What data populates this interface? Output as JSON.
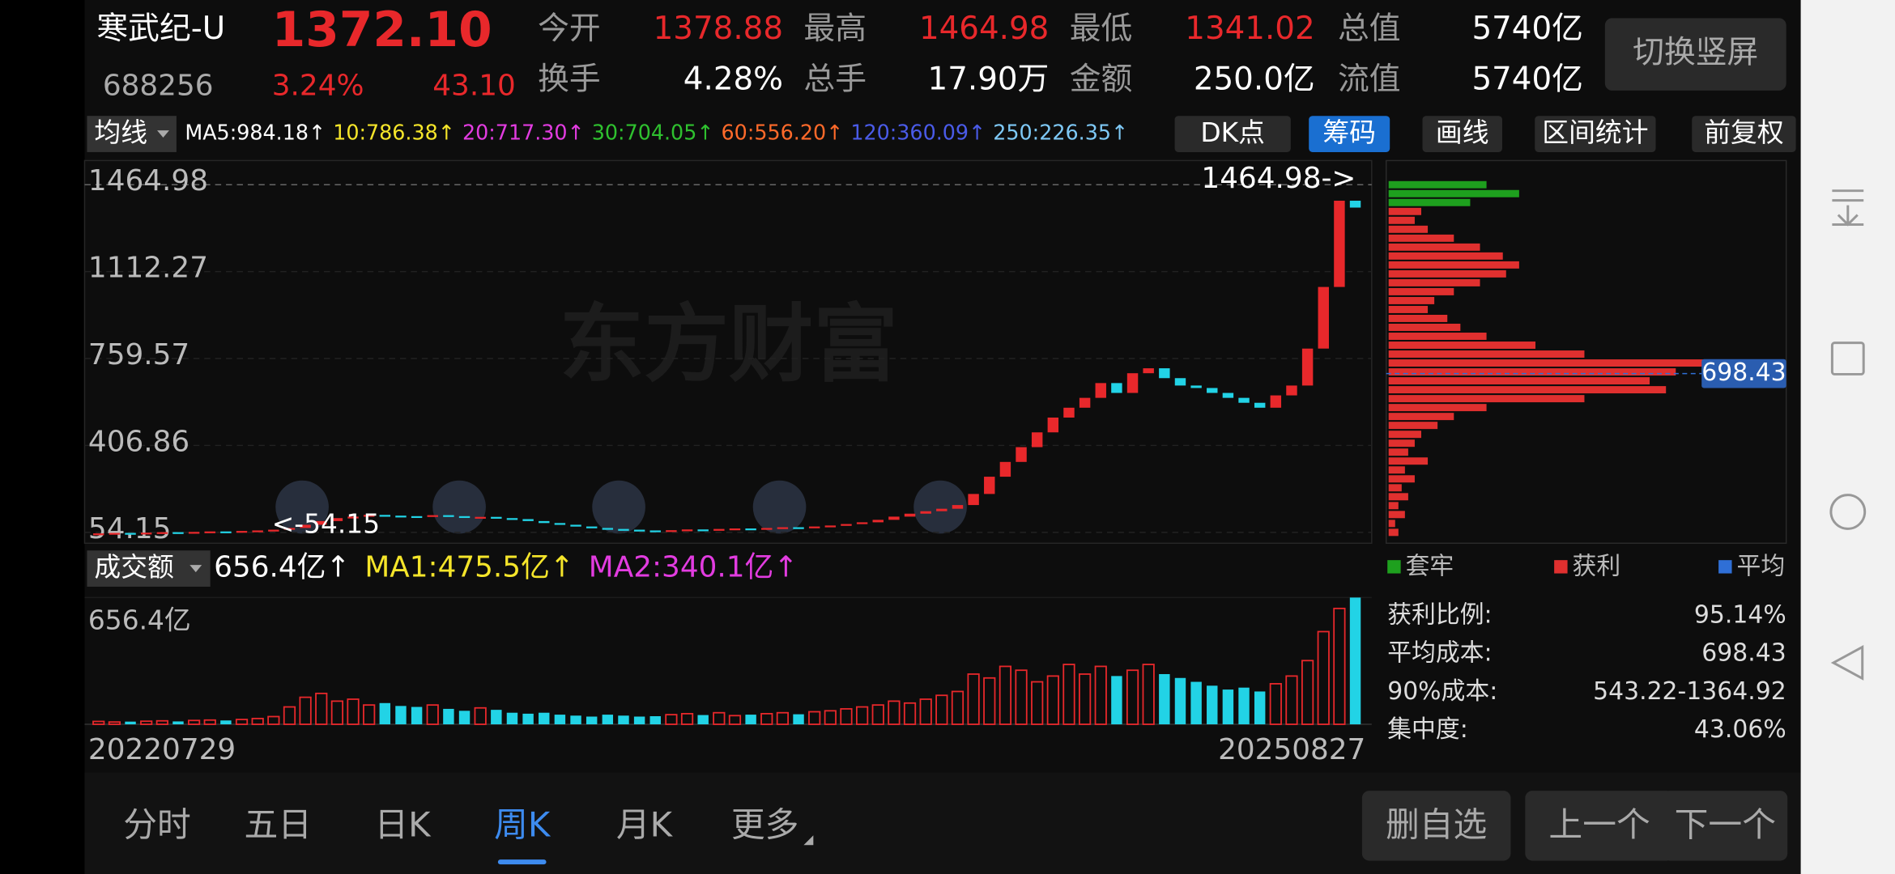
{
  "header": {
    "name": "寒武纪-U",
    "price": "1372.10",
    "code": "688256",
    "change_pct": "3.24%",
    "change": "43.10",
    "stats": [
      {
        "label": "今开",
        "value": "1378.88",
        "color": "#e8282b"
      },
      {
        "label": "最高",
        "value": "1464.98",
        "color": "#e8282b"
      },
      {
        "label": "最低",
        "value": "1341.02",
        "color": "#e8282b"
      },
      {
        "label": "总值",
        "value": "5740亿",
        "color": "#ffffff"
      },
      {
        "label": "换手",
        "value": "4.28%",
        "color": "#ffffff"
      },
      {
        "label": "总手",
        "value": "17.90万",
        "color": "#ffffff"
      },
      {
        "label": "金额",
        "value": "250.0亿",
        "color": "#ffffff"
      },
      {
        "label": "流值",
        "value": "5740亿",
        "color": "#ffffff"
      }
    ],
    "switch_button": "切换竖屏"
  },
  "toolbar": {
    "ma_selector": "均线",
    "ma_values": [
      {
        "text": "MA5:984.18↑",
        "color": "#ffffff"
      },
      {
        "text": "10:786.38↑",
        "color": "#f5e52a"
      },
      {
        "text": "20:717.30↑",
        "color": "#e23ce0"
      },
      {
        "text": "30:704.05↑",
        "color": "#2fc12f"
      },
      {
        "text": "60:556.20↑",
        "color": "#ff6a2a"
      },
      {
        "text": "120:360.09↑",
        "color": "#4a5be8"
      },
      {
        "text": "250:226.35↑",
        "color": "#7ec8f5"
      }
    ],
    "buttons": [
      "DK点",
      "筹码",
      "画线",
      "区间统计",
      "前复权"
    ],
    "active_button": 1
  },
  "chart_data": [
    {
      "type": "candlestick",
      "watermark": "东方财富",
      "annotations": [
        "1464.98->",
        "<-54.15"
      ],
      "ylim": [
        54.15,
        1464.98
      ],
      "yticks": [
        54.15,
        406.86,
        759.57,
        1112.27,
        1464.98
      ],
      "grid": true,
      "up_color": "#e8282b",
      "down_color": "#22d3e6",
      "categories": [
        "20220729",
        null,
        null,
        null,
        null,
        null,
        null,
        null,
        null,
        null,
        null,
        null,
        null,
        null,
        null,
        null,
        null,
        null,
        null,
        null,
        null,
        null,
        null,
        null,
        null,
        null,
        null,
        null,
        null,
        null,
        null,
        null,
        null,
        null,
        null,
        null,
        null,
        null,
        null,
        null,
        null,
        null,
        null,
        null,
        null,
        null,
        null,
        null,
        null,
        null,
        null,
        null,
        null,
        null,
        null,
        null,
        null,
        null,
        null,
        null,
        null,
        null,
        null,
        null,
        null,
        null,
        null,
        null,
        null,
        null,
        null,
        null,
        null,
        null,
        null,
        null,
        null,
        null,
        null,
        "20250827"
      ],
      "values": [
        50,
        52,
        51,
        53,
        55,
        54,
        56,
        58,
        57,
        60,
        62,
        65,
        72,
        85,
        100,
        112,
        118,
        125,
        122,
        120,
        118,
        124,
        120,
        115,
        117,
        112,
        108,
        100,
        92,
        85,
        78,
        72,
        68,
        65,
        62,
        60,
        63,
        66,
        64,
        68,
        70,
        67,
        72,
        75,
        73,
        78,
        82,
        88,
        95,
        105,
        118,
        130,
        140,
        150,
        165,
        210,
        280,
        340,
        400,
        460,
        520,
        560,
        600,
        660,
        620,
        700,
        720,
        680,
        650,
        640,
        620,
        600,
        580,
        560,
        610,
        650,
        800,
        1050,
        1400,
        1372.1
      ]
    },
    {
      "type": "bar",
      "title": "成交额",
      "legend": [
        {
          "name": "656.4亿↑",
          "color": "#ffffff"
        },
        {
          "name": "MA1:475.5亿↑",
          "color": "#f5e52a"
        },
        {
          "name": "MA2:340.1亿↑",
          "color": "#e23ce0"
        }
      ],
      "ylim": [
        0,
        656.4
      ],
      "yticks": [
        {
          "value": 656.4,
          "label": "656.4亿"
        }
      ],
      "values": [
        15,
        12,
        14,
        16,
        18,
        15,
        20,
        22,
        20,
        25,
        30,
        40,
        90,
        140,
        160,
        120,
        130,
        100,
        110,
        95,
        90,
        100,
        80,
        70,
        85,
        75,
        60,
        55,
        60,
        50,
        45,
        40,
        50,
        45,
        40,
        42,
        50,
        55,
        48,
        60,
        45,
        50,
        55,
        60,
        52,
        65,
        70,
        80,
        90,
        100,
        120,
        110,
        130,
        150,
        170,
        260,
        240,
        300,
        280,
        220,
        250,
        310,
        260,
        300,
        250,
        280,
        310,
        260,
        240,
        220,
        200,
        180,
        190,
        170,
        210,
        250,
        330,
        480,
        600,
        656.4
      ]
    },
    {
      "type": "barh",
      "ylim": [
        54.15,
        1464.98
      ],
      "xlim": [
        0,
        100
      ],
      "up_color": "#1ea01e",
      "down_color": "#e0302f",
      "values": [
        30,
        40,
        25,
        10,
        8,
        12,
        20,
        28,
        35,
        40,
        36,
        28,
        20,
        14,
        12,
        18,
        22,
        30,
        45,
        60,
        100,
        88,
        80,
        85,
        60,
        30,
        20,
        15,
        10,
        8,
        6,
        12,
        5,
        8,
        4,
        6,
        3,
        5,
        2,
        3
      ],
      "average": {
        "value": 698.43,
        "label": "698.43"
      },
      "legend": [
        {
          "name": "套牢",
          "color": "#1ea01e"
        },
        {
          "name": "获利",
          "color": "#e0302f"
        },
        {
          "name": "平均",
          "color": "#2f6fd6"
        }
      ],
      "stats": [
        {
          "label": "获利比例:",
          "value": "95.14%"
        },
        {
          "label": "平均成本:",
          "value": "698.43"
        },
        {
          "label": "90%成本:",
          "value": "543.22-1364.92"
        },
        {
          "label": "集中度:",
          "value": "43.06%"
        }
      ]
    }
  ],
  "bottom": {
    "tabs": [
      "分时",
      "五日",
      "日K",
      "周K",
      "月K",
      "更多"
    ],
    "active_tab": 3,
    "buttons": [
      "删自选",
      "上一个",
      "下一个"
    ]
  }
}
